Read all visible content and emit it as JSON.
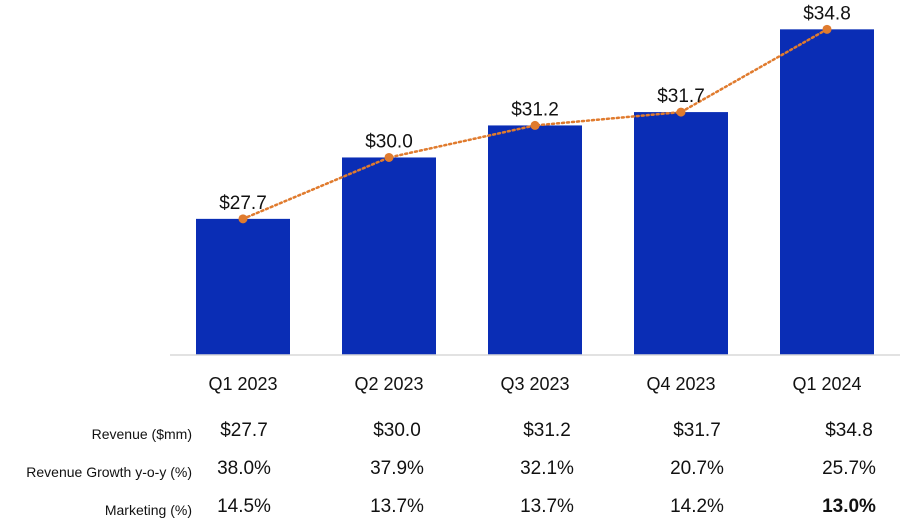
{
  "chart_data": {
    "type": "bar",
    "categories": [
      "Q1 2023",
      "Q2 2023",
      "Q3 2023",
      "Q4 2023",
      "Q1 2024"
    ],
    "values": [
      27.7,
      30.0,
      31.2,
      31.7,
      34.8
    ],
    "data_labels": [
      "$27.7",
      "$30.0",
      "$31.2",
      "$31.7",
      "$34.8"
    ],
    "line_overlay": {
      "values": [
        27.7,
        30.0,
        31.2,
        31.7,
        34.8
      ],
      "style": "dotted",
      "marker": "circle"
    },
    "ylim": [
      22.6,
      35.0
    ],
    "grid": false,
    "colors": {
      "bar": "#0a2db5",
      "line": "#e07b2e",
      "axis": "#d9d9d9"
    }
  },
  "table": {
    "rows": [
      {
        "label": "Revenue ($mm)",
        "values": [
          "$27.7",
          "$30.0",
          "$31.2",
          "$31.7",
          "$34.8"
        ]
      },
      {
        "label": "Revenue Growth y-o-y (%)",
        "values": [
          "38.0%",
          "37.9%",
          "32.1%",
          "20.7%",
          "25.7%"
        ]
      },
      {
        "label": "Marketing (%)",
        "values": [
          "14.5%",
          "13.7%",
          "13.7%",
          "14.2%",
          "13.0%"
        ],
        "bold_last": true
      }
    ]
  }
}
